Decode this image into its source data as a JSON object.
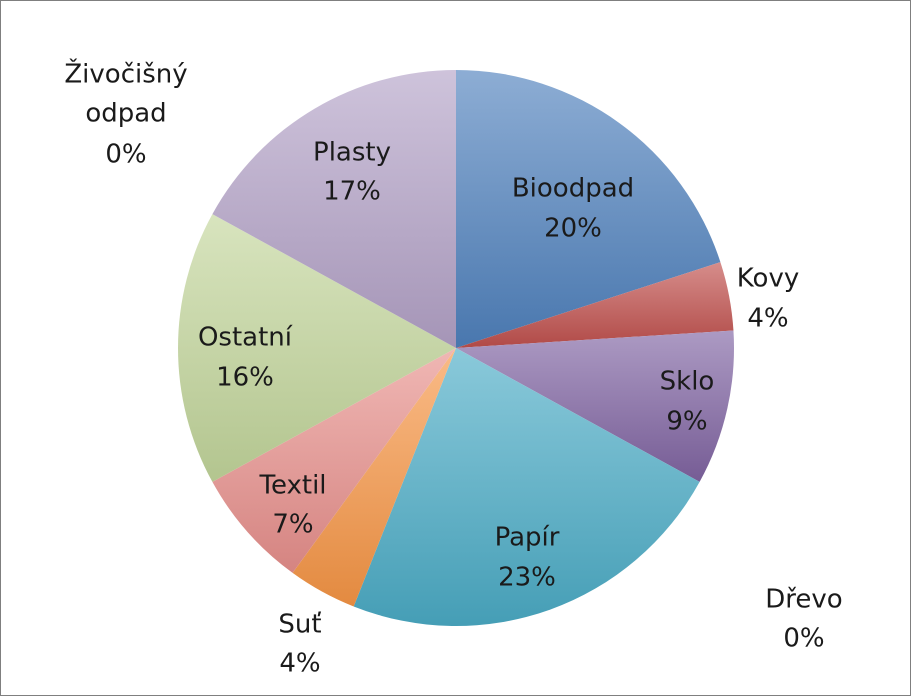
{
  "chart_data": {
    "type": "pie",
    "title": "",
    "slices": [
      {
        "label": "Bioodpad",
        "value": 20,
        "pct": "20%",
        "color": "#4f81bd",
        "start_deg": 0
      },
      {
        "label": "Kovy",
        "value": 4,
        "pct": "4%",
        "color": "#c0504d",
        "start_deg": 72
      },
      {
        "label": "Sklo",
        "value": 9,
        "pct": "9%",
        "color": "#8064a2",
        "start_deg": 86.4
      },
      {
        "label": "Dřevo",
        "value": 0,
        "pct": "0%",
        "color": "#9bbb59",
        "start_deg": 118.8
      },
      {
        "label": "Papír",
        "value": 23,
        "pct": "23%",
        "color": "#4bacc6",
        "start_deg": 118.8
      },
      {
        "label": "Suť",
        "value": 4,
        "pct": "4%",
        "color": "#f79646",
        "start_deg": 201.6
      },
      {
        "label": "Textil",
        "value": 7,
        "pct": "7%",
        "color": "#e8908c",
        "start_deg": 216
      },
      {
        "label": "Ostatní",
        "value": 16,
        "pct": "16%",
        "color": "#c3d69b",
        "start_deg": 241.2
      },
      {
        "label": "Plasty",
        "value": 17,
        "pct": "17%",
        "color": "#b3a2c7",
        "start_deg": 298.8
      },
      {
        "label": "Živočišný odpad",
        "value": 0,
        "pct": "0%",
        "color": "#8db3e2",
        "start_deg": 360
      }
    ]
  }
}
